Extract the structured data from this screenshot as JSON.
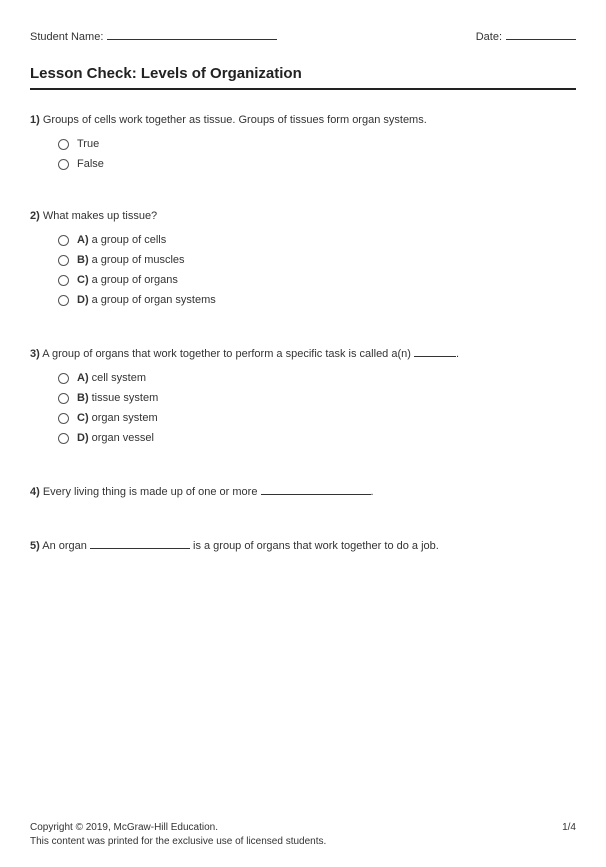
{
  "header": {
    "student_name_label": "Student Name:",
    "date_label": "Date:"
  },
  "title": "Lesson Check: Levels of Organization",
  "questions": {
    "q1": {
      "num": "1)",
      "prompt": "Groups of cells work together as tissue. Groups of tissues form organ systems.",
      "opt_true": "True",
      "opt_false": "False"
    },
    "q2": {
      "num": "2)",
      "prompt": "What makes up tissue?",
      "a_label": "A)",
      "a_text": "a group of cells",
      "b_label": "B)",
      "b_text": "a group of muscles",
      "c_label": "C)",
      "c_text": "a group of organs",
      "d_label": "D)",
      "d_text": "a group of organ systems"
    },
    "q3": {
      "num": "3)",
      "prompt_pre": "A group of organs that work together to perform a specific task is called a(n) ",
      "prompt_post": ".",
      "a_label": "A)",
      "a_text": "cell system",
      "b_label": "B)",
      "b_text": "tissue system",
      "c_label": "C)",
      "c_text": "organ system",
      "d_label": "D)",
      "d_text": "organ vessel"
    },
    "q4": {
      "num": "4)",
      "prompt_pre": "Every living thing is made up of one or more ",
      "prompt_post": "."
    },
    "q5": {
      "num": "5)",
      "prompt_pre": "An organ ",
      "prompt_post": " is a group of organs that work together to do a job."
    }
  },
  "footer": {
    "copyright": "Copyright © 2019, McGraw-Hill Education.",
    "note": "This content was printed for the exclusive use of licensed students.",
    "page": "1/4"
  }
}
